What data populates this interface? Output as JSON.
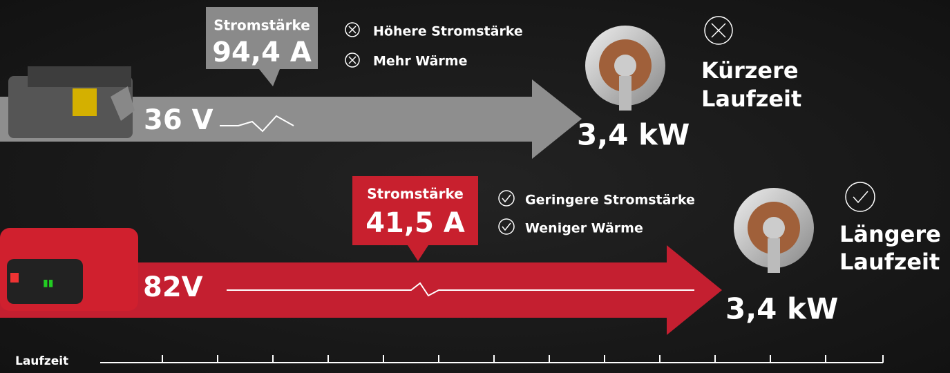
{
  "top": {
    "callout_label": "Stromstärke",
    "callout_value": "94,4 A",
    "points": [
      "Höhere Stromstärke",
      "Mehr Wärme"
    ],
    "result": [
      "Kürzere",
      "Laufzeit"
    ],
    "voltage": "36 V",
    "power": "3,4 kW"
  },
  "bottom": {
    "callout_label": "Stromstärke",
    "callout_value": "41,5 A",
    "points": [
      "Geringere Stromstärke",
      "Weniger Wärme"
    ],
    "result": [
      "Längere",
      "Laufzeit"
    ],
    "voltage": "82V",
    "power": "3,4 kW"
  },
  "timeline": {
    "label": "Laufzeit"
  }
}
